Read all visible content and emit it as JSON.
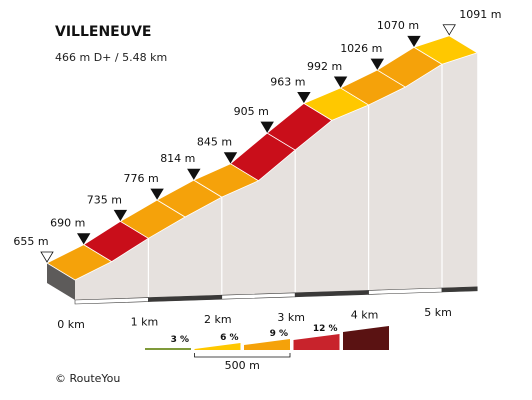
{
  "chart_data": {
    "type": "area",
    "title": "VILLENEUVE",
    "subtitle": "466 m D+ / 5.48 km",
    "x_unit": "km",
    "x_ticks": [
      "0 km",
      "1 km",
      "2 km",
      "3 km",
      "4 km",
      "5 km"
    ],
    "x": [
      0,
      0.5,
      1.0,
      1.5,
      2.0,
      2.5,
      3.0,
      3.5,
      4.0,
      4.5,
      5.0,
      5.48
    ],
    "elevation": [
      655,
      690,
      735,
      776,
      814,
      845,
      905,
      963,
      992,
      1026,
      1070,
      1091
    ],
    "elevation_labels": [
      "655 m",
      "690 m",
      "735 m",
      "776 m",
      "814 m",
      "845 m",
      "905 m",
      "963 m",
      "992 m",
      "1026 m",
      "1070 m",
      "1091 m"
    ],
    "segment_colors": [
      "#f5a20a",
      "#c90e1a",
      "#f5a20a",
      "#f5a20a",
      "#f5a20a",
      "#c90e1a",
      "#c90e1a",
      "#ffc800",
      "#f5a20a",
      "#f5a20a",
      "#ffc800"
    ],
    "legend": {
      "items": [
        {
          "label": "3 %",
          "color": "#7f9a3a"
        },
        {
          "label": "6 %",
          "color": "#ffc800"
        },
        {
          "label": "9 %",
          "color": "#f5a20a"
        },
        {
          "label": "12 %",
          "color": "#c8232c"
        },
        {
          "label": "",
          "color": "#5a1212"
        }
      ],
      "scale_label": "500 m"
    },
    "credit": "©  RouteYou"
  }
}
